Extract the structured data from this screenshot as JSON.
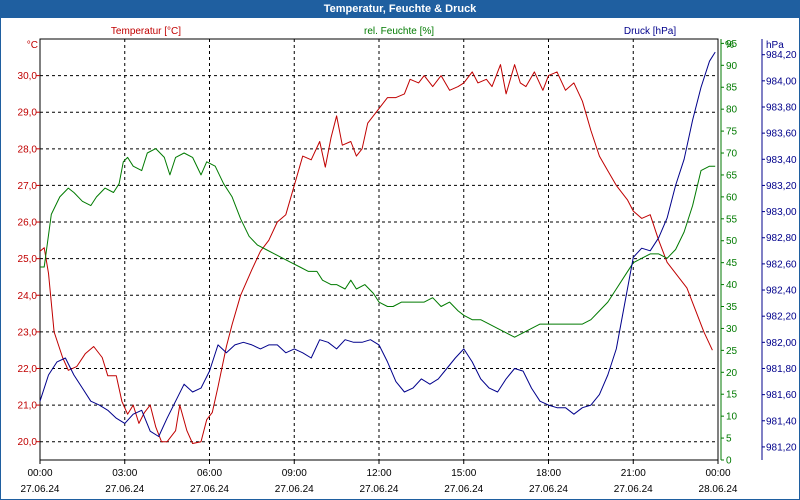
{
  "window_title": "Temperatur, Feuchte & Druck",
  "colors": {
    "titlebar": "#1f5fa0",
    "temperature": "#c00000",
    "humidity": "#007a00",
    "pressure": "#00008b",
    "grid": "#000000"
  },
  "chart_data": {
    "type": "line",
    "grid": true,
    "x": {
      "ticks": [
        "00:00",
        "03:00",
        "06:00",
        "09:00",
        "12:00",
        "15:00",
        "18:00",
        "21:00",
        "00:00"
      ],
      "dates": [
        "27.06.24",
        "27.06.24",
        "27.06.24",
        "27.06.24",
        "27.06.24",
        "27.06.24",
        "27.06.24",
        "27.06.24",
        "28.06.24"
      ],
      "range_hours": [
        0,
        24
      ]
    },
    "axes": {
      "temperature": {
        "unit": "°C",
        "label": "Temperatur [°C]",
        "side": "left",
        "range": [
          19.5,
          31.0
        ],
        "ticks": [
          "20,0",
          "21,0",
          "22,0",
          "23,0",
          "24,0",
          "25,0",
          "26,0",
          "27,0",
          "28,0",
          "29,0",
          "30,0"
        ]
      },
      "humidity": {
        "unit": "%",
        "label": "rel. Feuchte [%]",
        "side": "right",
        "range": [
          0,
          96
        ],
        "ticks": [
          "0",
          "5",
          "10",
          "15",
          "20",
          "25",
          "30",
          "35",
          "40",
          "45",
          "50",
          "55",
          "60",
          "65",
          "70",
          "75",
          "80",
          "85",
          "90",
          "95"
        ]
      },
      "pressure": {
        "unit": "hPa",
        "label": "Druck [hPa]",
        "side": "right",
        "range": [
          981.1,
          984.32
        ],
        "ticks": [
          "981,20",
          "981,40",
          "981,60",
          "981,80",
          "982,00",
          "982,20",
          "982,40",
          "982,60",
          "982,80",
          "983,00",
          "983,20",
          "983,40",
          "983,60",
          "983,80",
          "984,00",
          "984,20"
        ]
      }
    },
    "series": [
      {
        "name": "Temperatur [°C]",
        "axis": "temperature",
        "points": [
          [
            0.0,
            25.2
          ],
          [
            0.15,
            25.3
          ],
          [
            0.3,
            24.6
          ],
          [
            0.5,
            23.0
          ],
          [
            0.8,
            22.3
          ],
          [
            1.0,
            21.95
          ],
          [
            1.3,
            22.05
          ],
          [
            1.6,
            22.4
          ],
          [
            1.9,
            22.6
          ],
          [
            2.2,
            22.3
          ],
          [
            2.4,
            21.8
          ],
          [
            2.7,
            21.8
          ],
          [
            2.9,
            21.1
          ],
          [
            3.1,
            20.75
          ],
          [
            3.3,
            21.0
          ],
          [
            3.5,
            20.5
          ],
          [
            3.7,
            20.8
          ],
          [
            3.9,
            21.0
          ],
          [
            4.1,
            20.4
          ],
          [
            4.3,
            20.0
          ],
          [
            4.5,
            20.0
          ],
          [
            4.8,
            20.3
          ],
          [
            4.95,
            21.0
          ],
          [
            5.2,
            20.3
          ],
          [
            5.4,
            19.95
          ],
          [
            5.7,
            20.0
          ],
          [
            5.9,
            20.6
          ],
          [
            6.1,
            20.8
          ],
          [
            6.3,
            21.5
          ],
          [
            6.6,
            22.6
          ],
          [
            6.8,
            23.2
          ],
          [
            7.1,
            24.0
          ],
          [
            7.5,
            24.7
          ],
          [
            7.8,
            25.2
          ],
          [
            8.1,
            25.5
          ],
          [
            8.4,
            26.0
          ],
          [
            8.7,
            26.2
          ],
          [
            9.0,
            27.0
          ],
          [
            9.3,
            27.8
          ],
          [
            9.6,
            27.7
          ],
          [
            9.9,
            28.2
          ],
          [
            10.1,
            27.5
          ],
          [
            10.3,
            28.3
          ],
          [
            10.5,
            28.9
          ],
          [
            10.7,
            28.1
          ],
          [
            11.0,
            28.2
          ],
          [
            11.2,
            27.8
          ],
          [
            11.4,
            28.0
          ],
          [
            11.6,
            28.7
          ],
          [
            11.9,
            29.0
          ],
          [
            12.1,
            29.2
          ],
          [
            12.3,
            29.4
          ],
          [
            12.6,
            29.4
          ],
          [
            12.9,
            29.5
          ],
          [
            13.1,
            29.9
          ],
          [
            13.4,
            29.8
          ],
          [
            13.6,
            30.0
          ],
          [
            13.9,
            29.7
          ],
          [
            14.2,
            30.0
          ],
          [
            14.5,
            29.6
          ],
          [
            14.8,
            29.7
          ],
          [
            15.0,
            29.8
          ],
          [
            15.3,
            30.1
          ],
          [
            15.5,
            29.8
          ],
          [
            15.8,
            29.9
          ],
          [
            16.0,
            29.7
          ],
          [
            16.3,
            30.3
          ],
          [
            16.5,
            29.5
          ],
          [
            16.8,
            30.3
          ],
          [
            17.0,
            29.8
          ],
          [
            17.2,
            29.7
          ],
          [
            17.5,
            30.1
          ],
          [
            17.8,
            29.6
          ],
          [
            18.0,
            30.0
          ],
          [
            18.3,
            30.1
          ],
          [
            18.6,
            29.6
          ],
          [
            18.9,
            29.8
          ],
          [
            19.2,
            29.3
          ],
          [
            19.5,
            28.5
          ],
          [
            19.8,
            27.8
          ],
          [
            20.1,
            27.4
          ],
          [
            20.4,
            27.0
          ],
          [
            20.8,
            26.6
          ],
          [
            21.0,
            26.3
          ],
          [
            21.3,
            26.1
          ],
          [
            21.6,
            26.2
          ],
          [
            21.9,
            25.5
          ],
          [
            22.2,
            24.9
          ],
          [
            22.5,
            24.6
          ],
          [
            22.9,
            24.2
          ],
          [
            23.2,
            23.6
          ],
          [
            23.5,
            23.0
          ],
          [
            23.8,
            22.5
          ]
        ]
      },
      {
        "name": "rel. Feuchte [%]",
        "axis": "humidity",
        "points": [
          [
            0.0,
            44
          ],
          [
            0.15,
            44
          ],
          [
            0.4,
            56
          ],
          [
            0.7,
            60
          ],
          [
            1.0,
            62
          ],
          [
            1.2,
            61
          ],
          [
            1.5,
            59
          ],
          [
            1.8,
            58
          ],
          [
            2.0,
            60
          ],
          [
            2.3,
            62
          ],
          [
            2.6,
            61
          ],
          [
            2.8,
            63
          ],
          [
            2.95,
            68
          ],
          [
            3.1,
            69
          ],
          [
            3.3,
            67
          ],
          [
            3.6,
            66
          ],
          [
            3.8,
            70
          ],
          [
            4.1,
            71
          ],
          [
            4.4,
            69
          ],
          [
            4.6,
            65
          ],
          [
            4.8,
            69
          ],
          [
            5.1,
            70
          ],
          [
            5.4,
            69
          ],
          [
            5.7,
            65
          ],
          [
            5.9,
            68
          ],
          [
            6.2,
            67
          ],
          [
            6.5,
            63
          ],
          [
            6.8,
            60
          ],
          [
            7.1,
            55
          ],
          [
            7.4,
            51
          ],
          [
            7.7,
            49
          ],
          [
            8.0,
            48
          ],
          [
            8.3,
            47
          ],
          [
            8.6,
            46
          ],
          [
            8.9,
            45
          ],
          [
            9.2,
            44
          ],
          [
            9.5,
            43
          ],
          [
            9.8,
            43
          ],
          [
            10.0,
            41
          ],
          [
            10.3,
            40
          ],
          [
            10.5,
            40
          ],
          [
            10.8,
            39
          ],
          [
            11.0,
            41
          ],
          [
            11.2,
            39
          ],
          [
            11.5,
            40
          ],
          [
            11.8,
            38
          ],
          [
            12.0,
            36
          ],
          [
            12.3,
            35
          ],
          [
            12.5,
            35
          ],
          [
            12.8,
            36
          ],
          [
            13.0,
            36
          ],
          [
            13.3,
            36
          ],
          [
            13.6,
            36
          ],
          [
            13.9,
            37
          ],
          [
            14.2,
            35
          ],
          [
            14.5,
            36
          ],
          [
            14.8,
            34
          ],
          [
            15.0,
            33
          ],
          [
            15.3,
            32
          ],
          [
            15.6,
            32
          ],
          [
            15.9,
            31
          ],
          [
            16.2,
            30
          ],
          [
            16.5,
            29
          ],
          [
            16.8,
            28
          ],
          [
            17.1,
            29
          ],
          [
            17.4,
            30
          ],
          [
            17.7,
            31
          ],
          [
            18.0,
            31
          ],
          [
            18.3,
            31
          ],
          [
            18.6,
            31
          ],
          [
            18.9,
            31
          ],
          [
            19.2,
            31
          ],
          [
            19.5,
            32
          ],
          [
            19.8,
            34
          ],
          [
            20.1,
            36
          ],
          [
            20.4,
            39
          ],
          [
            20.7,
            42
          ],
          [
            21.0,
            45
          ],
          [
            21.3,
            46
          ],
          [
            21.6,
            47
          ],
          [
            21.9,
            47
          ],
          [
            22.2,
            46
          ],
          [
            22.5,
            48
          ],
          [
            22.8,
            52
          ],
          [
            23.1,
            58
          ],
          [
            23.4,
            66
          ],
          [
            23.7,
            67
          ],
          [
            23.9,
            67
          ]
        ]
      },
      {
        "name": "Druck [hPa]",
        "axis": "pressure",
        "points": [
          [
            0.0,
            981.55
          ],
          [
            0.3,
            981.75
          ],
          [
            0.6,
            981.85
          ],
          [
            0.9,
            981.88
          ],
          [
            1.2,
            981.75
          ],
          [
            1.5,
            981.65
          ],
          [
            1.8,
            981.55
          ],
          [
            2.1,
            981.52
          ],
          [
            2.4,
            981.48
          ],
          [
            2.7,
            981.42
          ],
          [
            3.0,
            981.38
          ],
          [
            3.3,
            981.45
          ],
          [
            3.6,
            981.48
          ],
          [
            3.9,
            981.32
          ],
          [
            4.2,
            981.28
          ],
          [
            4.5,
            981.42
          ],
          [
            4.8,
            981.55
          ],
          [
            5.1,
            981.68
          ],
          [
            5.4,
            981.62
          ],
          [
            5.7,
            981.65
          ],
          [
            6.0,
            981.78
          ],
          [
            6.3,
            981.98
          ],
          [
            6.6,
            981.92
          ],
          [
            6.9,
            981.98
          ],
          [
            7.2,
            982.0
          ],
          [
            7.5,
            981.98
          ],
          [
            7.8,
            981.95
          ],
          [
            8.1,
            981.98
          ],
          [
            8.4,
            981.98
          ],
          [
            8.7,
            981.92
          ],
          [
            9.0,
            981.95
          ],
          [
            9.3,
            981.92
          ],
          [
            9.6,
            981.88
          ],
          [
            9.9,
            982.02
          ],
          [
            10.2,
            982.0
          ],
          [
            10.5,
            981.95
          ],
          [
            10.8,
            982.02
          ],
          [
            11.1,
            982.0
          ],
          [
            11.4,
            982.0
          ],
          [
            11.7,
            982.02
          ],
          [
            12.0,
            981.98
          ],
          [
            12.3,
            981.85
          ],
          [
            12.6,
            981.7
          ],
          [
            12.9,
            981.62
          ],
          [
            13.2,
            981.65
          ],
          [
            13.5,
            981.72
          ],
          [
            13.8,
            981.68
          ],
          [
            14.1,
            981.72
          ],
          [
            14.4,
            981.8
          ],
          [
            14.7,
            981.88
          ],
          [
            15.0,
            981.95
          ],
          [
            15.3,
            981.85
          ],
          [
            15.6,
            981.72
          ],
          [
            15.9,
            981.65
          ],
          [
            16.2,
            981.62
          ],
          [
            16.5,
            981.72
          ],
          [
            16.8,
            981.8
          ],
          [
            17.1,
            981.78
          ],
          [
            17.4,
            981.65
          ],
          [
            17.7,
            981.55
          ],
          [
            18.0,
            981.52
          ],
          [
            18.3,
            981.5
          ],
          [
            18.6,
            981.5
          ],
          [
            18.9,
            981.45
          ],
          [
            19.2,
            981.5
          ],
          [
            19.5,
            981.52
          ],
          [
            19.8,
            981.6
          ],
          [
            20.1,
            981.75
          ],
          [
            20.4,
            981.95
          ],
          [
            20.7,
            982.3
          ],
          [
            21.0,
            982.65
          ],
          [
            21.3,
            982.72
          ],
          [
            21.6,
            982.7
          ],
          [
            21.9,
            982.8
          ],
          [
            22.2,
            982.95
          ],
          [
            22.5,
            983.2
          ],
          [
            22.8,
            983.4
          ],
          [
            23.1,
            983.7
          ],
          [
            23.4,
            983.95
          ],
          [
            23.7,
            984.15
          ],
          [
            23.9,
            984.22
          ]
        ]
      }
    ]
  }
}
